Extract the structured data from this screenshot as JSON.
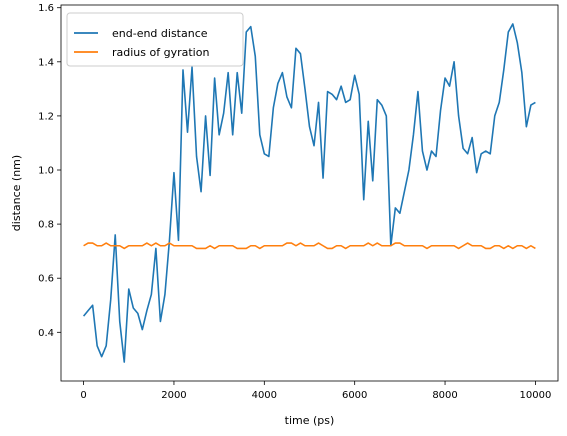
{
  "chart_data": {
    "type": "line",
    "xlabel": "time (ps)",
    "ylabel": "distance (nm)",
    "xlim": [
      -500,
      10500
    ],
    "ylim": [
      0.22,
      1.61
    ],
    "xticks": [
      0,
      2000,
      4000,
      6000,
      8000,
      10000
    ],
    "xtick_labels": [
      "0",
      "2000",
      "4000",
      "6000",
      "8000",
      "10000"
    ],
    "yticks": [
      0.4,
      0.6,
      0.8,
      1.0,
      1.2,
      1.4,
      1.6
    ],
    "ytick_labels": [
      "0.4",
      "0.6",
      "0.8",
      "1.0",
      "1.2",
      "1.4",
      "1.6"
    ],
    "grid": false,
    "legend_position": "top-left",
    "x": [
      0,
      100,
      200,
      300,
      400,
      500,
      600,
      700,
      800,
      900,
      1000,
      1100,
      1200,
      1300,
      1400,
      1500,
      1600,
      1700,
      1800,
      1900,
      2000,
      2100,
      2200,
      2300,
      2400,
      2500,
      2600,
      2700,
      2800,
      2900,
      3000,
      3100,
      3200,
      3300,
      3400,
      3500,
      3600,
      3700,
      3800,
      3900,
      4000,
      4100,
      4200,
      4300,
      4400,
      4500,
      4600,
      4700,
      4800,
      4900,
      5000,
      5100,
      5200,
      5300,
      5400,
      5500,
      5600,
      5700,
      5800,
      5900,
      6000,
      6100,
      6200,
      6300,
      6400,
      6500,
      6600,
      6700,
      6800,
      6900,
      7000,
      7100,
      7200,
      7300,
      7400,
      7500,
      7600,
      7700,
      7800,
      7900,
      8000,
      8100,
      8200,
      8300,
      8400,
      8500,
      8600,
      8700,
      8800,
      8900,
      9000,
      9100,
      9200,
      9300,
      9400,
      9500,
      9600,
      9700,
      9800,
      9900,
      10000
    ],
    "series": [
      {
        "name": "end-end distance",
        "color": "#1f77b4",
        "values": [
          0.46,
          0.48,
          0.5,
          0.35,
          0.31,
          0.35,
          0.52,
          0.76,
          0.44,
          0.29,
          0.56,
          0.49,
          0.47,
          0.41,
          0.48,
          0.54,
          0.71,
          0.44,
          0.54,
          0.74,
          0.99,
          0.74,
          1.37,
          1.14,
          1.38,
          1.05,
          0.92,
          1.2,
          0.98,
          1.34,
          1.13,
          1.21,
          1.36,
          1.13,
          1.36,
          1.21,
          1.51,
          1.53,
          1.42,
          1.13,
          1.06,
          1.05,
          1.23,
          1.32,
          1.36,
          1.27,
          1.23,
          1.45,
          1.43,
          1.3,
          1.16,
          1.09,
          1.25,
          0.97,
          1.29,
          1.28,
          1.26,
          1.31,
          1.25,
          1.26,
          1.35,
          1.28,
          0.89,
          1.18,
          0.96,
          1.26,
          1.24,
          1.2,
          0.72,
          0.86,
          0.84,
          0.92,
          1.0,
          1.13,
          1.29,
          1.07,
          1.0,
          1.07,
          1.05,
          1.22,
          1.34,
          1.31,
          1.4,
          1.2,
          1.08,
          1.06,
          1.12,
          0.99,
          1.06,
          1.07,
          1.06,
          1.2,
          1.25,
          1.37,
          1.51,
          1.54,
          1.47,
          1.36,
          1.16,
          1.24,
          1.25
        ]
      },
      {
        "name": "radius of gyration",
        "color": "#ff7f0e",
        "values": [
          0.72,
          0.73,
          0.73,
          0.72,
          0.72,
          0.73,
          0.72,
          0.72,
          0.72,
          0.71,
          0.72,
          0.72,
          0.72,
          0.72,
          0.73,
          0.72,
          0.73,
          0.72,
          0.72,
          0.73,
          0.72,
          0.72,
          0.72,
          0.72,
          0.72,
          0.71,
          0.71,
          0.71,
          0.72,
          0.71,
          0.72,
          0.72,
          0.72,
          0.72,
          0.71,
          0.71,
          0.71,
          0.72,
          0.72,
          0.71,
          0.72,
          0.72,
          0.72,
          0.72,
          0.72,
          0.73,
          0.73,
          0.72,
          0.73,
          0.72,
          0.72,
          0.72,
          0.73,
          0.72,
          0.71,
          0.71,
          0.72,
          0.72,
          0.71,
          0.72,
          0.72,
          0.72,
          0.72,
          0.73,
          0.72,
          0.73,
          0.72,
          0.72,
          0.72,
          0.73,
          0.73,
          0.72,
          0.72,
          0.72,
          0.72,
          0.72,
          0.71,
          0.72,
          0.72,
          0.72,
          0.72,
          0.72,
          0.72,
          0.71,
          0.72,
          0.73,
          0.72,
          0.72,
          0.72,
          0.71,
          0.71,
          0.72,
          0.72,
          0.71,
          0.72,
          0.71,
          0.72,
          0.72,
          0.71,
          0.72,
          0.71
        ]
      }
    ]
  }
}
